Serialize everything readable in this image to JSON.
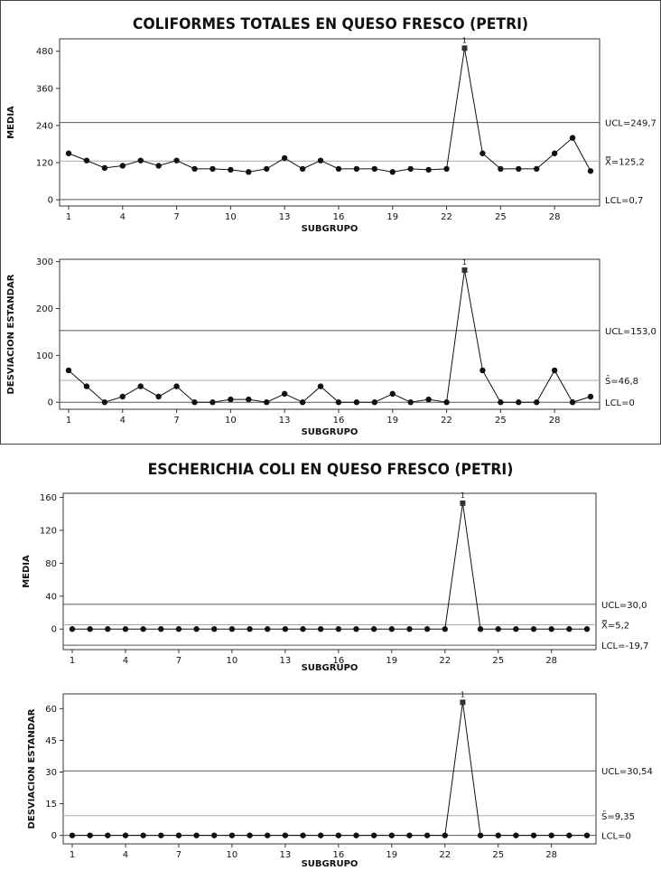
{
  "chart_data": [
    {
      "type": "line",
      "panel": 0,
      "title": "COLIFORMES TOTALES EN QUESO FRESCO (PETRI)",
      "xlabel": "SUBGRUPO",
      "ylabel": "MEDIA",
      "xlim": [
        1,
        30
      ],
      "ylim": [
        -20,
        520
      ],
      "x_ticks": [
        "1",
        "4",
        "7",
        "10",
        "13",
        "16",
        "19",
        "22",
        "25",
        "28"
      ],
      "y_ticks": [
        "0",
        "120",
        "240",
        "360",
        "480"
      ],
      "x": [
        1,
        2,
        3,
        4,
        5,
        6,
        7,
        8,
        9,
        10,
        11,
        12,
        13,
        14,
        15,
        16,
        17,
        18,
        19,
        20,
        21,
        22,
        23,
        24,
        25,
        26,
        27,
        28,
        29,
        30
      ],
      "values": [
        150,
        127,
        103,
        110,
        127,
        110,
        127,
        100,
        100,
        97,
        90,
        100,
        135,
        100,
        127,
        100,
        100,
        100,
        90,
        100,
        97,
        100,
        490,
        150,
        100,
        100,
        100,
        150,
        200,
        93
      ],
      "center_line": 125.2,
      "ucl": 249.7,
      "lcl": 0.7,
      "ucl_label": "UCL=249,7",
      "center_label": "X̿=125,2",
      "lcl_label": "LCL=0,7",
      "out_of_control": [
        23
      ],
      "flag_text": "1"
    },
    {
      "type": "line",
      "panel": 0,
      "title": "",
      "xlabel": "SUBGRUPO",
      "ylabel": "DESVIACION ESTANDAR",
      "xlim": [
        1,
        30
      ],
      "ylim": [
        -15,
        305
      ],
      "x_ticks": [
        "1",
        "4",
        "7",
        "10",
        "13",
        "16",
        "19",
        "22",
        "25",
        "28"
      ],
      "y_ticks": [
        "0",
        "100",
        "200",
        "300"
      ],
      "x": [
        1,
        2,
        3,
        4,
        5,
        6,
        7,
        8,
        9,
        10,
        11,
        12,
        13,
        14,
        15,
        16,
        17,
        18,
        19,
        20,
        21,
        22,
        23,
        24,
        25,
        26,
        27,
        28,
        29,
        30
      ],
      "values": [
        68,
        34,
        0,
        12,
        34,
        12,
        34,
        0,
        0,
        6,
        6,
        0,
        18,
        0,
        34,
        0,
        0,
        0,
        18,
        0,
        6,
        0,
        282,
        68,
        0,
        0,
        0,
        68,
        0,
        12
      ],
      "center_line": 46.8,
      "ucl": 153.0,
      "lcl": 0,
      "ucl_label": "UCL=153,0",
      "center_label": "S̄=46,8",
      "lcl_label": "LCL=0",
      "out_of_control": [
        23
      ],
      "flag_text": "1"
    },
    {
      "type": "line",
      "panel": 1,
      "title": "ESCHERICHIA COLI EN QUESO FRESCO (PETRI)",
      "xlabel": "SUBGRUPO",
      "ylabel": "MEDIA",
      "xlim": [
        1,
        30
      ],
      "ylim": [
        -25,
        165
      ],
      "x_ticks": [
        "1",
        "4",
        "7",
        "10",
        "13",
        "16",
        "19",
        "22",
        "25",
        "28"
      ],
      "y_ticks": [
        "0",
        "40",
        "80",
        "120",
        "160"
      ],
      "x": [
        1,
        2,
        3,
        4,
        5,
        6,
        7,
        8,
        9,
        10,
        11,
        12,
        13,
        14,
        15,
        16,
        17,
        18,
        19,
        20,
        21,
        22,
        23,
        24,
        25,
        26,
        27,
        28,
        29,
        30
      ],
      "values": [
        0,
        0,
        0,
        0,
        0,
        0,
        0,
        0,
        0,
        0,
        0,
        0,
        0,
        0,
        0,
        0,
        0,
        0,
        0,
        0,
        0,
        0,
        153,
        0,
        0,
        0,
        0,
        0,
        0,
        0
      ],
      "center_line": 5.2,
      "ucl": 30.0,
      "lcl": -19.7,
      "ucl_label": "UCL=30,0",
      "center_label": "X̿=5,2",
      "lcl_label": "LCL=-19,7",
      "out_of_control": [
        23
      ],
      "flag_text": "1"
    },
    {
      "type": "line",
      "panel": 1,
      "title": "",
      "xlabel": "SUBGRUPO",
      "ylabel": "DESVIACION ESTANDAR",
      "xlim": [
        1,
        30
      ],
      "ylim": [
        -4,
        67
      ],
      "x_ticks": [
        "1",
        "4",
        "7",
        "10",
        "13",
        "16",
        "19",
        "22",
        "25",
        "28"
      ],
      "y_ticks": [
        "0",
        "15",
        "30",
        "45",
        "60"
      ],
      "x": [
        1,
        2,
        3,
        4,
        5,
        6,
        7,
        8,
        9,
        10,
        11,
        12,
        13,
        14,
        15,
        16,
        17,
        18,
        19,
        20,
        21,
        22,
        23,
        24,
        25,
        26,
        27,
        28,
        29,
        30
      ],
      "values": [
        0,
        0,
        0,
        0,
        0,
        0,
        0,
        0,
        0,
        0,
        0,
        0,
        0,
        0,
        0,
        0,
        0,
        0,
        0,
        0,
        0,
        0,
        63,
        0,
        0,
        0,
        0,
        0,
        0,
        0
      ],
      "center_line": 9.35,
      "ucl": 30.54,
      "lcl": 0,
      "ucl_label": "UCL=30,54",
      "center_label": "S̄=9,35",
      "lcl_label": "LCL=0",
      "out_of_control": [
        23
      ],
      "flag_text": "1"
    }
  ]
}
